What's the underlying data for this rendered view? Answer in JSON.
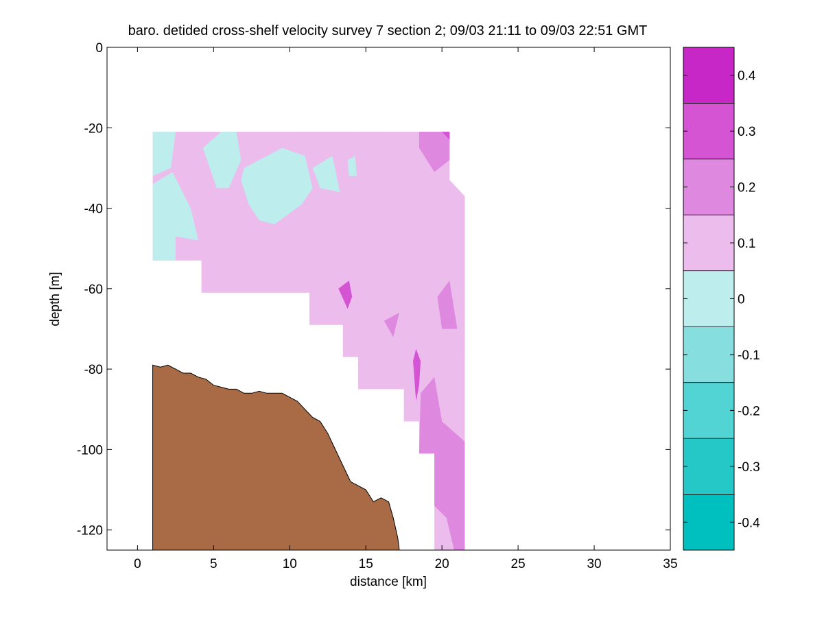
{
  "chart_data": {
    "type": "heatmap",
    "title": "baro. detided cross-shelf velocity survey 7 section 2; 09/03 21:11 to 09/03 22:51 GMT",
    "xlabel": "distance [km]",
    "ylabel": "depth [m]",
    "xlim": [
      -2,
      35
    ],
    "ylim": [
      -125,
      0
    ],
    "xticks": [
      0,
      5,
      10,
      15,
      20,
      25,
      30,
      35
    ],
    "yticks": [
      0,
      -20,
      -40,
      -60,
      -80,
      -100,
      -120
    ],
    "colorbar": {
      "ticks": [
        -0.4,
        -0.3,
        -0.2,
        -0.1,
        0,
        0.1,
        0.2,
        0.3,
        0.4
      ],
      "levels": [
        -0.45,
        -0.35,
        -0.25,
        -0.15,
        -0.05,
        0.05,
        0.15,
        0.25,
        0.35,
        0.45
      ],
      "level_colors": [
        "#00bfbf",
        "#26c7c7",
        "#53d4d4",
        "#86dede",
        "#bdeded",
        "#ecbcec",
        "#df88df",
        "#d454d4",
        "#c827c8",
        "#bf00bf"
      ]
    },
    "colors": {
      "land": "#a86b45",
      "neg_weak": "#bdeded",
      "pos_weak": "#ecbcec",
      "pos_mid": "#df88df",
      "pos_strong": "#d454d4"
    },
    "data_region": [
      [
        1.0,
        -21
      ],
      [
        20.5,
        -21
      ],
      [
        20.5,
        -37
      ],
      [
        21.5,
        -37
      ],
      [
        21.5,
        -125
      ],
      [
        19.5,
        -125
      ],
      [
        19.5,
        -101
      ],
      [
        18.5,
        -101
      ],
      [
        18.5,
        -93
      ],
      [
        17.5,
        -93
      ],
      [
        17.5,
        -85
      ],
      [
        14.5,
        -85
      ],
      [
        14.5,
        -77
      ],
      [
        13.5,
        -77
      ],
      [
        13.5,
        -69
      ],
      [
        11.3,
        -69
      ],
      [
        11.3,
        -61
      ],
      [
        4.2,
        -61
      ],
      [
        4.2,
        -53
      ],
      [
        1.0,
        -53
      ]
    ],
    "contour_regions": [
      {
        "level": -0.05,
        "coords": [
          [
            1.0,
            -21
          ],
          [
            2.5,
            -21
          ],
          [
            2.2,
            -30
          ],
          [
            1.0,
            -32
          ]
        ]
      },
      {
        "level": -0.05,
        "coords": [
          [
            1.0,
            -34
          ],
          [
            2.3,
            -31
          ],
          [
            3.5,
            -40
          ],
          [
            4.0,
            -48
          ],
          [
            2.5,
            -47
          ],
          [
            2.5,
            -53
          ],
          [
            1.0,
            -53
          ]
        ]
      },
      {
        "level": -0.05,
        "coords": [
          [
            4.3,
            -25
          ],
          [
            5.5,
            -21
          ],
          [
            6.5,
            -21
          ],
          [
            6.8,
            -28
          ],
          [
            6.0,
            -35
          ],
          [
            5.2,
            -35
          ]
        ]
      },
      {
        "level": -0.05,
        "coords": [
          [
            7.0,
            -30
          ],
          [
            9.5,
            -25
          ],
          [
            11.0,
            -27
          ],
          [
            11.5,
            -35
          ],
          [
            10.8,
            -39
          ],
          [
            9.0,
            -44
          ],
          [
            8.0,
            -43
          ],
          [
            7.3,
            -39
          ],
          [
            6.8,
            -33
          ]
        ]
      },
      {
        "level": -0.05,
        "coords": [
          [
            11.5,
            -30
          ],
          [
            12.8,
            -27
          ],
          [
            13.3,
            -36
          ],
          [
            12.0,
            -35
          ]
        ]
      },
      {
        "level": -0.05,
        "coords": [
          [
            13.8,
            -28
          ],
          [
            14.3,
            -27
          ],
          [
            14.4,
            -32
          ],
          [
            13.9,
            -32
          ]
        ]
      },
      {
        "level": 0.05,
        "coords": [
          [
            11.3,
            -38
          ],
          [
            13.0,
            -40
          ],
          [
            14.0,
            -43
          ],
          [
            15.5,
            -41
          ],
          [
            17.5,
            -37
          ],
          [
            19.0,
            -39
          ],
          [
            19.0,
            -33
          ],
          [
            20.5,
            -33
          ],
          [
            21.5,
            -37
          ],
          [
            21.5,
            -78
          ],
          [
            20.5,
            -80
          ],
          [
            19.5,
            -77
          ],
          [
            19.0,
            -70
          ],
          [
            18.5,
            -65
          ],
          [
            18.0,
            -55
          ],
          [
            16.5,
            -53
          ],
          [
            16.0,
            -50
          ],
          [
            16.5,
            -63
          ],
          [
            16.8,
            -66
          ],
          [
            16.0,
            -73
          ],
          [
            15.5,
            -77
          ],
          [
            14.5,
            -80
          ],
          [
            14.5,
            -77
          ],
          [
            13.5,
            -77
          ],
          [
            13.5,
            -69
          ],
          [
            11.3,
            -69
          ],
          [
            11.3,
            -61
          ],
          [
            12.0,
            -60
          ],
          [
            11.8,
            -52
          ],
          [
            11.5,
            -45
          ]
        ]
      },
      {
        "level": 0.05,
        "coords": [
          [
            14.5,
            -21
          ],
          [
            16.0,
            -21
          ],
          [
            17.8,
            -31
          ],
          [
            16.5,
            -36
          ],
          [
            15.5,
            -32
          ]
        ]
      },
      {
        "level": 0.05,
        "coords": [
          [
            10.8,
            -21
          ],
          [
            12.0,
            -21
          ],
          [
            11.5,
            -25
          ]
        ]
      },
      {
        "level": 0.05,
        "coords": [
          [
            12.8,
            -21
          ],
          [
            13.4,
            -21
          ],
          [
            13.1,
            -23
          ]
        ]
      },
      {
        "level": 0.15,
        "coords": [
          [
            18.5,
            -21
          ],
          [
            20.5,
            -21
          ],
          [
            20.5,
            -28
          ],
          [
            19.5,
            -31
          ],
          [
            18.5,
            -25
          ]
        ]
      },
      {
        "level": 0.15,
        "coords": [
          [
            19.7,
            -62
          ],
          [
            20.5,
            -58
          ],
          [
            21.0,
            -70
          ],
          [
            20.0,
            -70
          ]
        ]
      },
      {
        "level": 0.15,
        "coords": [
          [
            18.6,
            -86
          ],
          [
            19.5,
            -82
          ],
          [
            20.0,
            -93
          ],
          [
            21.5,
            -98
          ],
          [
            21.5,
            -125
          ],
          [
            20.8,
            -125
          ],
          [
            20.3,
            -117
          ],
          [
            19.5,
            -114
          ],
          [
            19.5,
            -101
          ],
          [
            18.5,
            -101
          ]
        ]
      },
      {
        "level": 0.15,
        "coords": [
          [
            16.2,
            -68
          ],
          [
            17.2,
            -66
          ],
          [
            16.8,
            -72
          ]
        ]
      },
      {
        "level": 0.25,
        "coords": [
          [
            13.2,
            -60
          ],
          [
            13.9,
            -58
          ],
          [
            14.1,
            -62
          ],
          [
            13.8,
            -65
          ]
        ]
      },
      {
        "level": 0.25,
        "coords": [
          [
            18.1,
            -78
          ],
          [
            18.3,
            -75
          ],
          [
            18.6,
            -78
          ],
          [
            18.5,
            -84
          ],
          [
            18.3,
            -88
          ]
        ]
      },
      {
        "level": 0.25,
        "coords": [
          [
            20.0,
            -21
          ],
          [
            20.5,
            -21
          ],
          [
            20.5,
            -23
          ]
        ]
      }
    ],
    "bathymetry": [
      [
        1.0,
        -125
      ],
      [
        1.0,
        -79
      ],
      [
        1.5,
        -79.5
      ],
      [
        2.0,
        -79
      ],
      [
        2.5,
        -80
      ],
      [
        3.0,
        -81
      ],
      [
        3.5,
        -81
      ],
      [
        4.0,
        -82
      ],
      [
        4.5,
        -82.5
      ],
      [
        5.0,
        -84
      ],
      [
        5.5,
        -84.5
      ],
      [
        6.0,
        -85
      ],
      [
        6.5,
        -85
      ],
      [
        7.0,
        -86
      ],
      [
        7.5,
        -86
      ],
      [
        8.0,
        -85.5
      ],
      [
        8.5,
        -86
      ],
      [
        9.0,
        -86
      ],
      [
        9.5,
        -86
      ],
      [
        10.0,
        -87
      ],
      [
        10.5,
        -88
      ],
      [
        11.0,
        -90
      ],
      [
        11.5,
        -92
      ],
      [
        12.0,
        -93
      ],
      [
        12.5,
        -96
      ],
      [
        13.0,
        -100
      ],
      [
        13.5,
        -104
      ],
      [
        14.0,
        -108
      ],
      [
        14.5,
        -109
      ],
      [
        15.0,
        -110
      ],
      [
        15.5,
        -113
      ],
      [
        16.0,
        -112
      ],
      [
        16.5,
        -113
      ],
      [
        16.8,
        -117
      ],
      [
        17.1,
        -122
      ],
      [
        17.2,
        -125
      ]
    ]
  }
}
